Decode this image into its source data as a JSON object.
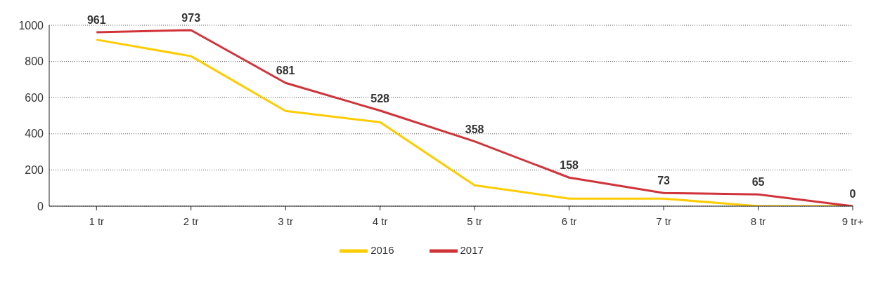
{
  "chart_data": {
    "type": "line",
    "categories": [
      "1 tr",
      "2 tr",
      "3 tr",
      "4 tr",
      "5 tr",
      "6 tr",
      "7 tr",
      "8 tr",
      "9 tr+"
    ],
    "series": [
      {
        "name": "2016",
        "color": "#fecc00",
        "values": [
          920,
          829,
          526,
          464,
          115,
          42,
          42,
          0,
          0
        ]
      },
      {
        "name": "2017",
        "color": "#d0343a",
        "values": [
          961,
          973,
          681,
          528,
          358,
          158,
          73,
          65,
          0
        ],
        "value_labels": [
          "961",
          "973",
          "681",
          "528",
          "358",
          "158",
          "73",
          "65",
          "0"
        ]
      }
    ],
    "ylim": [
      0,
      1000
    ],
    "yticks": [
      0,
      200,
      400,
      600,
      800,
      1000
    ],
    "grid": "y",
    "legend": "bottom",
    "marker": "none",
    "line_style": "solid"
  }
}
